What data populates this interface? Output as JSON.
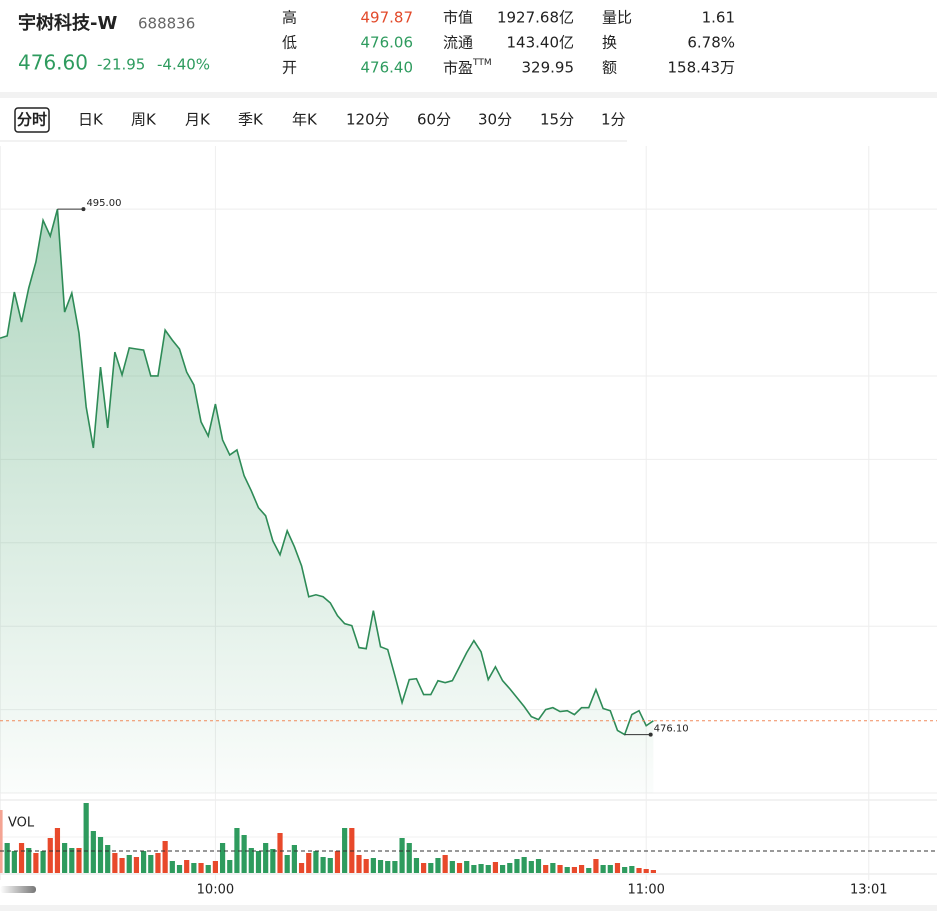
{
  "header": {
    "name": "宇树科技-W",
    "code": "688836",
    "price": "476.60",
    "change": "-21.95",
    "change_pct": "-4.40%",
    "stats": [
      {
        "label": "高",
        "value": "497.87",
        "color": "#e24a2b"
      },
      {
        "label": "低",
        "value": "476.06",
        "color": "#2e9b5e"
      },
      {
        "label": "开",
        "value": "476.40",
        "color": "#2e9b5e"
      },
      {
        "label": "市值",
        "value": "1927.68亿",
        "color": "#222222"
      },
      {
        "label": "流通",
        "value": "143.40亿",
        "color": "#222222"
      },
      {
        "label": "市盈",
        "sup": "TTM",
        "value": "329.95",
        "color": "#222222"
      },
      {
        "label": "量比",
        "value": "1.61",
        "color": "#222222"
      },
      {
        "label": "换",
        "value": "6.78%",
        "color": "#222222"
      },
      {
        "label": "额",
        "value": "158.43万",
        "color": "#222222"
      }
    ]
  },
  "tabs": [
    "分时",
    "日K",
    "周K",
    "月K",
    "季K",
    "年K",
    "120分",
    "60分",
    "30分",
    "15分",
    "1分"
  ],
  "active_tab_index": 0,
  "chart_data": {
    "type": "line",
    "color": "#2e8b57",
    "ylim": [
      474,
      497.2
    ],
    "yticks": [
      474,
      477,
      480,
      483,
      486,
      489,
      492,
      495
    ],
    "grid": true,
    "categories": [
      null,
      null,
      null,
      null,
      null,
      null,
      null,
      null,
      null,
      null,
      null,
      null,
      null,
      null,
      null,
      null,
      null,
      null,
      null,
      null,
      null,
      null,
      null,
      null,
      null,
      null,
      null,
      null,
      null,
      null,
      "10:00",
      null,
      null,
      null,
      null,
      null,
      null,
      null,
      null,
      null,
      null,
      null,
      null,
      null,
      null,
      null,
      null,
      null,
      null,
      null,
      null,
      null,
      null,
      null,
      null,
      null,
      null,
      null,
      null,
      null,
      null,
      null,
      null,
      null,
      null,
      null,
      null,
      null,
      null,
      null,
      null,
      null,
      null,
      null,
      null,
      null,
      null,
      null,
      null,
      null,
      null,
      null,
      null,
      null,
      null,
      null,
      null,
      null,
      null,
      null,
      "11:00",
      null,
      null,
      null,
      null,
      null,
      null,
      null,
      null,
      null,
      null,
      null,
      null,
      null,
      null,
      null,
      null,
      null,
      null,
      null,
      null,
      null,
      null,
      null,
      null,
      null,
      null,
      null,
      null,
      null,
      null,
      "13:01",
      null,
      null,
      null,
      null,
      null,
      null,
      null,
      null
    ],
    "values": [
      490.36,
      490.44,
      492.02,
      490.94,
      492.16,
      493.1,
      494.6,
      494.03,
      495.0,
      491.3,
      491.98,
      490.54,
      487.89,
      486.41,
      489.32,
      487.13,
      489.86,
      489.04,
      490.01,
      489.97,
      489.93,
      489.0,
      489.0,
      490.65,
      490.29,
      489.97,
      489.14,
      488.68,
      487.35,
      486.84,
      487.99,
      486.7,
      486.16,
      486.34,
      485.41,
      484.87,
      484.26,
      483.97,
      483.07,
      482.57,
      483.43,
      482.86,
      482.17,
      481.06,
      481.13,
      481.06,
      480.84,
      480.38,
      480.09,
      480.02,
      479.23,
      479.19,
      480.56,
      479.26,
      479.16,
      478.22,
      477.25,
      478.08,
      478.11,
      477.54,
      477.54,
      478.04,
      477.97,
      478.04,
      478.54,
      479.05,
      479.48,
      479.08,
      478.08,
      478.54,
      478.04,
      477.75,
      477.43,
      477.11,
      476.75,
      476.64,
      477.0,
      477.07,
      476.93,
      476.96,
      476.82,
      477.07,
      477.07,
      477.72,
      477.04,
      476.96,
      476.25,
      476.1,
      476.82,
      476.96,
      476.42,
      476.6,
      null,
      null,
      null,
      null,
      null,
      null,
      null,
      null,
      null,
      null,
      null,
      null,
      null,
      null,
      null,
      null,
      null,
      null,
      null,
      null,
      null,
      null,
      null,
      null,
      null,
      null,
      null,
      null,
      null,
      null,
      null,
      null,
      null,
      null,
      null,
      null,
      null,
      null
    ],
    "annotations": [
      {
        "value": 495.0,
        "label": "495.00"
      },
      {
        "value": 476.1,
        "label": "476.10"
      }
    ],
    "last_line_color": "#f08a5d",
    "volume": {
      "label": "VOL",
      "ylim": [
        0,
        73
      ],
      "avg_level": 22,
      "values": [
        63,
        30,
        22,
        30,
        25,
        20,
        22,
        35,
        45,
        30,
        25,
        25,
        70,
        42,
        36,
        28,
        20,
        15,
        18,
        16,
        22,
        18,
        20,
        32,
        12,
        8,
        13,
        10,
        10,
        8,
        12,
        30,
        13,
        45,
        38,
        25,
        22,
        30,
        24,
        40,
        18,
        28,
        10,
        20,
        22,
        16,
        15,
        22,
        45,
        45,
        18,
        14,
        15,
        13,
        12,
        12,
        35,
        30,
        15,
        10,
        10,
        15,
        18,
        12,
        10,
        12,
        8,
        9,
        8,
        11,
        8,
        10,
        14,
        16,
        12,
        14,
        8,
        10,
        8,
        6,
        6,
        8,
        5,
        14,
        8,
        8,
        10,
        6,
        7,
        5,
        4,
        3,
        null,
        null,
        null,
        null,
        null,
        null,
        null,
        null,
        null,
        null,
        null,
        null,
        null,
        null,
        null,
        null,
        null,
        null,
        null,
        null,
        null,
        null,
        null,
        null,
        null,
        null,
        null,
        null,
        null,
        null,
        null,
        null,
        null,
        null,
        null,
        null,
        null,
        null
      ],
      "colors": [
        "#f4a493",
        "#2e9b5e",
        "#2e9b5e",
        "#e8492b",
        "#2e9b5e",
        "#e8492b",
        "#2e9b5e",
        "#e8492b",
        "#e8492b",
        "#2e9b5e",
        "#2e9b5e",
        "#e8492b",
        "#2e9b5e",
        "#2e9b5e",
        "#2e9b5e",
        "#2e9b5e",
        "#e8492b",
        "#e8492b",
        "#2e9b5e",
        "#e8492b",
        "#2e9b5e",
        "#2e9b5e",
        "#e8492b",
        "#e8492b",
        "#2e9b5e",
        "#2e9b5e",
        "#e8492b",
        "#2e9b5e",
        "#e8492b",
        "#2e9b5e",
        "#e8492b",
        "#2e9b5e",
        "#2e9b5e",
        "#2e9b5e",
        "#2e9b5e",
        "#2e9b5e",
        "#2e9b5e",
        "#2e9b5e",
        "#2e9b5e",
        "#e8492b",
        "#2e9b5e",
        "#2e9b5e",
        "#e8492b",
        "#e8492b",
        "#2e9b5e",
        "#2e9b5e",
        "#2e9b5e",
        "#e8492b",
        "#2e9b5e",
        "#e8492b",
        "#e8492b",
        "#e8492b",
        "#2e9b5e",
        "#2e9b5e",
        "#2e9b5e",
        "#2e9b5e",
        "#2e9b5e",
        "#2e9b5e",
        "#2e9b5e",
        "#e8492b",
        "#2e9b5e",
        "#2e9b5e",
        "#e8492b",
        "#2e9b5e",
        "#e8492b",
        "#2e9b5e",
        "#2e9b5e",
        "#2e9b5e",
        "#2e9b5e",
        "#e8492b",
        "#2e9b5e",
        "#2e9b5e",
        "#2e9b5e",
        "#2e9b5e",
        "#2e9b5e",
        "#2e9b5e",
        "#e8492b",
        "#2e9b5e",
        "#e8492b",
        "#2e9b5e",
        "#e8492b",
        "#e8492b",
        "#2e9b5e",
        "#e8492b",
        "#2e9b5e",
        "#2e9b5e",
        "#e8492b",
        "#2e9b5e",
        "#2e9b5e",
        "#e8492b",
        "#e8492b",
        "#e8492b"
      ]
    }
  }
}
